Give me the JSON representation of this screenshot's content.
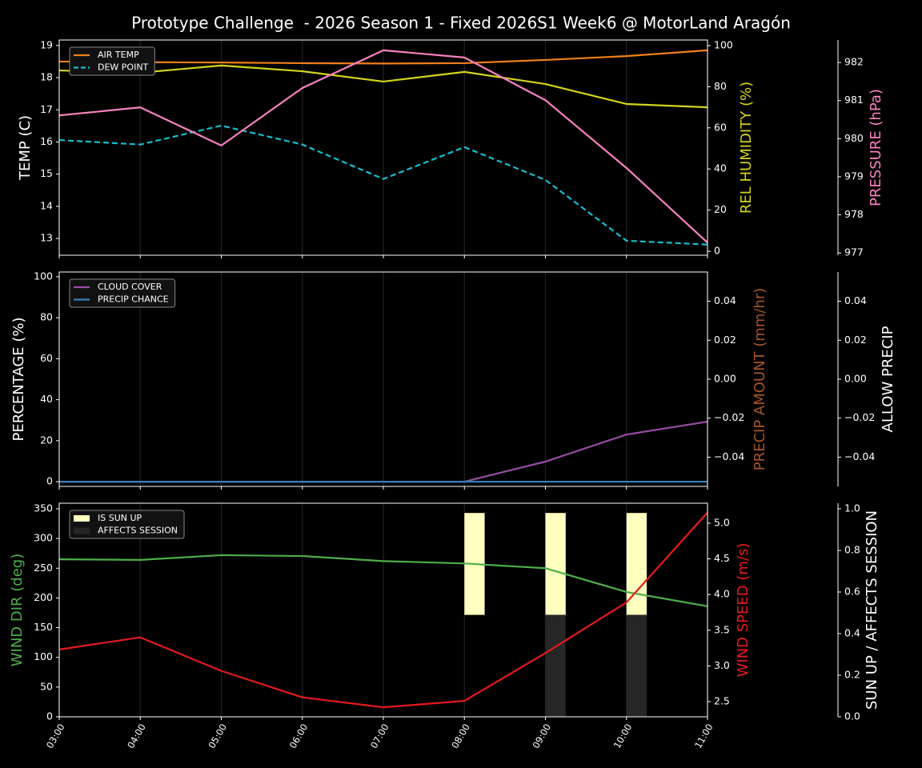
{
  "chart_data": [
    {
      "type": "line",
      "title": "Prototype Challenge  - 2026 Season 1 - Fixed 2026S1 Week6 @ MotorLand Aragón",
      "ylabel": "TEMP (C)",
      "ylabel_color": "#ffffff",
      "ylim": [
        12.48,
        19.17
      ],
      "yticks": [
        13,
        14,
        15,
        16,
        17,
        18,
        19
      ],
      "y2label": "REL HUMIDITY (%)",
      "y2label_color": "#d4d41e",
      "y2lim": [
        -1.9,
        102.7
      ],
      "y2ticks": [
        0,
        20,
        40,
        60,
        80,
        100
      ],
      "y3label": "PRESSURE (hPa)",
      "y3label_color": "#f781bf",
      "y3lim": [
        976.94,
        982.59
      ],
      "y3ticks": [
        977,
        978,
        979,
        980,
        981,
        982
      ],
      "xgrid": true,
      "legend": "upper left",
      "series": [
        {
          "name": "AIR TEMP",
          "color": "#f07f1a",
          "axis": "y",
          "style": "solid",
          "in_legend": true,
          "values": [
            18.5,
            18.48,
            18.47,
            18.45,
            18.44,
            18.45,
            18.55,
            18.67,
            18.85
          ]
        },
        {
          "name": "DEW POINT",
          "color": "#17becf",
          "axis": "y",
          "style": "dashed",
          "in_legend": true,
          "values": [
            16.06,
            15.92,
            16.51,
            15.92,
            14.85,
            15.84,
            14.82,
            12.93,
            12.81
          ]
        },
        {
          "color": "#d4d41e",
          "axis": "y2",
          "style": "solid",
          "in_legend": false,
          "values": [
            87.9,
            86.8,
            90.3,
            87.5,
            82.5,
            87.2,
            81.3,
            71.6,
            70.0
          ]
        },
        {
          "color": "#f781bf",
          "axis": "y3",
          "style": "solid",
          "in_legend": false,
          "values": [
            980.61,
            980.82,
            979.82,
            981.33,
            982.32,
            982.13,
            981.01,
            979.23,
            977.27
          ]
        }
      ]
    },
    {
      "type": "line",
      "ylabel": "PERCENTAGE (%)",
      "ylabel_color": "#ffffff",
      "ylim": [
        -2.3,
        102.3
      ],
      "yticks": [
        0,
        20,
        40,
        60,
        80,
        100
      ],
      "y2label": "PRECIP AMOUNT (mm/hr)",
      "y2label_color": "#a65628",
      "y2lim": [
        -0.055,
        0.055
      ],
      "y2ticks": [
        {
          "value": -0.04,
          "label": "−0.04"
        },
        {
          "value": -0.02,
          "label": "−0.02"
        },
        {
          "value": 0,
          "label": "0.00"
        },
        0.02,
        0.04
      ],
      "y3label": "ALLOW PRECIP",
      "y3label_color": "#ffffff",
      "y3lim": [
        -0.055,
        0.055
      ],
      "y3ticks": [
        {
          "value": -0.04,
          "label": "−0.04"
        },
        {
          "value": -0.02,
          "label": "−0.02"
        },
        {
          "value": 0,
          "label": "0.00"
        },
        0.02,
        0.04
      ],
      "xgrid": true,
      "legend": "upper left",
      "series": [
        {
          "name": "CLOUD COVER",
          "color": "#984ea3",
          "axis": "y",
          "style": "solid",
          "in_legend": true,
          "values": [
            0,
            0,
            0,
            0,
            0,
            0,
            9.8,
            23,
            29.3
          ]
        },
        {
          "name": "PRECIP CHANCE",
          "color": "#377eb8",
          "axis": "y",
          "style": "solid",
          "in_legend": true,
          "values": [
            0,
            0,
            0,
            0,
            0,
            0,
            0,
            0,
            0
          ]
        }
      ]
    },
    {
      "type": "line",
      "categories": [
        "03:00",
        "04:00",
        "05:00",
        "06:00",
        "07:00",
        "08:00",
        "09:00",
        "10:00",
        "11:00"
      ],
      "ylabel": "WIND DIR (deg)",
      "ylabel_color": "#4daf4a",
      "ylim": [
        0,
        359.4
      ],
      "yticks": [
        0,
        50,
        100,
        150,
        200,
        250,
        300,
        350
      ],
      "y2label": "WIND SPEED (m/s)",
      "y2label_color": "#e41a1c",
      "y2lim": [
        2.287,
        5.28
      ],
      "y2ticks": [
        2.5,
        {
          "value": 3,
          "label": "3.0"
        },
        3.5,
        {
          "value": 4,
          "label": "4.0"
        },
        4.5,
        {
          "value": 5,
          "label": "5.0"
        }
      ],
      "y3label": "SUN UP / AFFECTS SESSION",
      "y3label_color": "#ffffff",
      "y3lim": [
        0,
        1.027
      ],
      "y3ticks": [
        {
          "value": 0,
          "label": "0.0"
        },
        0.2,
        0.4,
        0.6,
        0.8,
        {
          "value": 1,
          "label": "1.0"
        }
      ],
      "xgrid": true,
      "legend": "upper left",
      "series": [
        {
          "name": "IS SUN UP",
          "type": "bar",
          "color": "#ffffc0",
          "axis": "y3",
          "bottom": 0.49,
          "in_legend": true,
          "values": [
            0,
            0,
            0,
            0,
            0,
            0.49,
            0.49,
            0.49,
            0
          ]
        },
        {
          "name": "AFFECTS SESSION",
          "type": "bar",
          "color": "#262626",
          "axis": "y3",
          "in_legend": true,
          "values": [
            0,
            0,
            0,
            0,
            0,
            0,
            0.49,
            0.49,
            0
          ]
        },
        {
          "color": "#4daf4a",
          "axis": "y",
          "style": "solid",
          "in_legend": false,
          "values": [
            265,
            264,
            272,
            270.5,
            262,
            258,
            250,
            210,
            186
          ]
        },
        {
          "color": "#e41a1c",
          "axis": "y2",
          "style": "solid",
          "in_legend": false,
          "values": [
            3.23,
            3.4,
            2.93,
            2.56,
            2.42,
            2.51,
            3.18,
            3.89,
            5.15
          ]
        }
      ]
    }
  ]
}
